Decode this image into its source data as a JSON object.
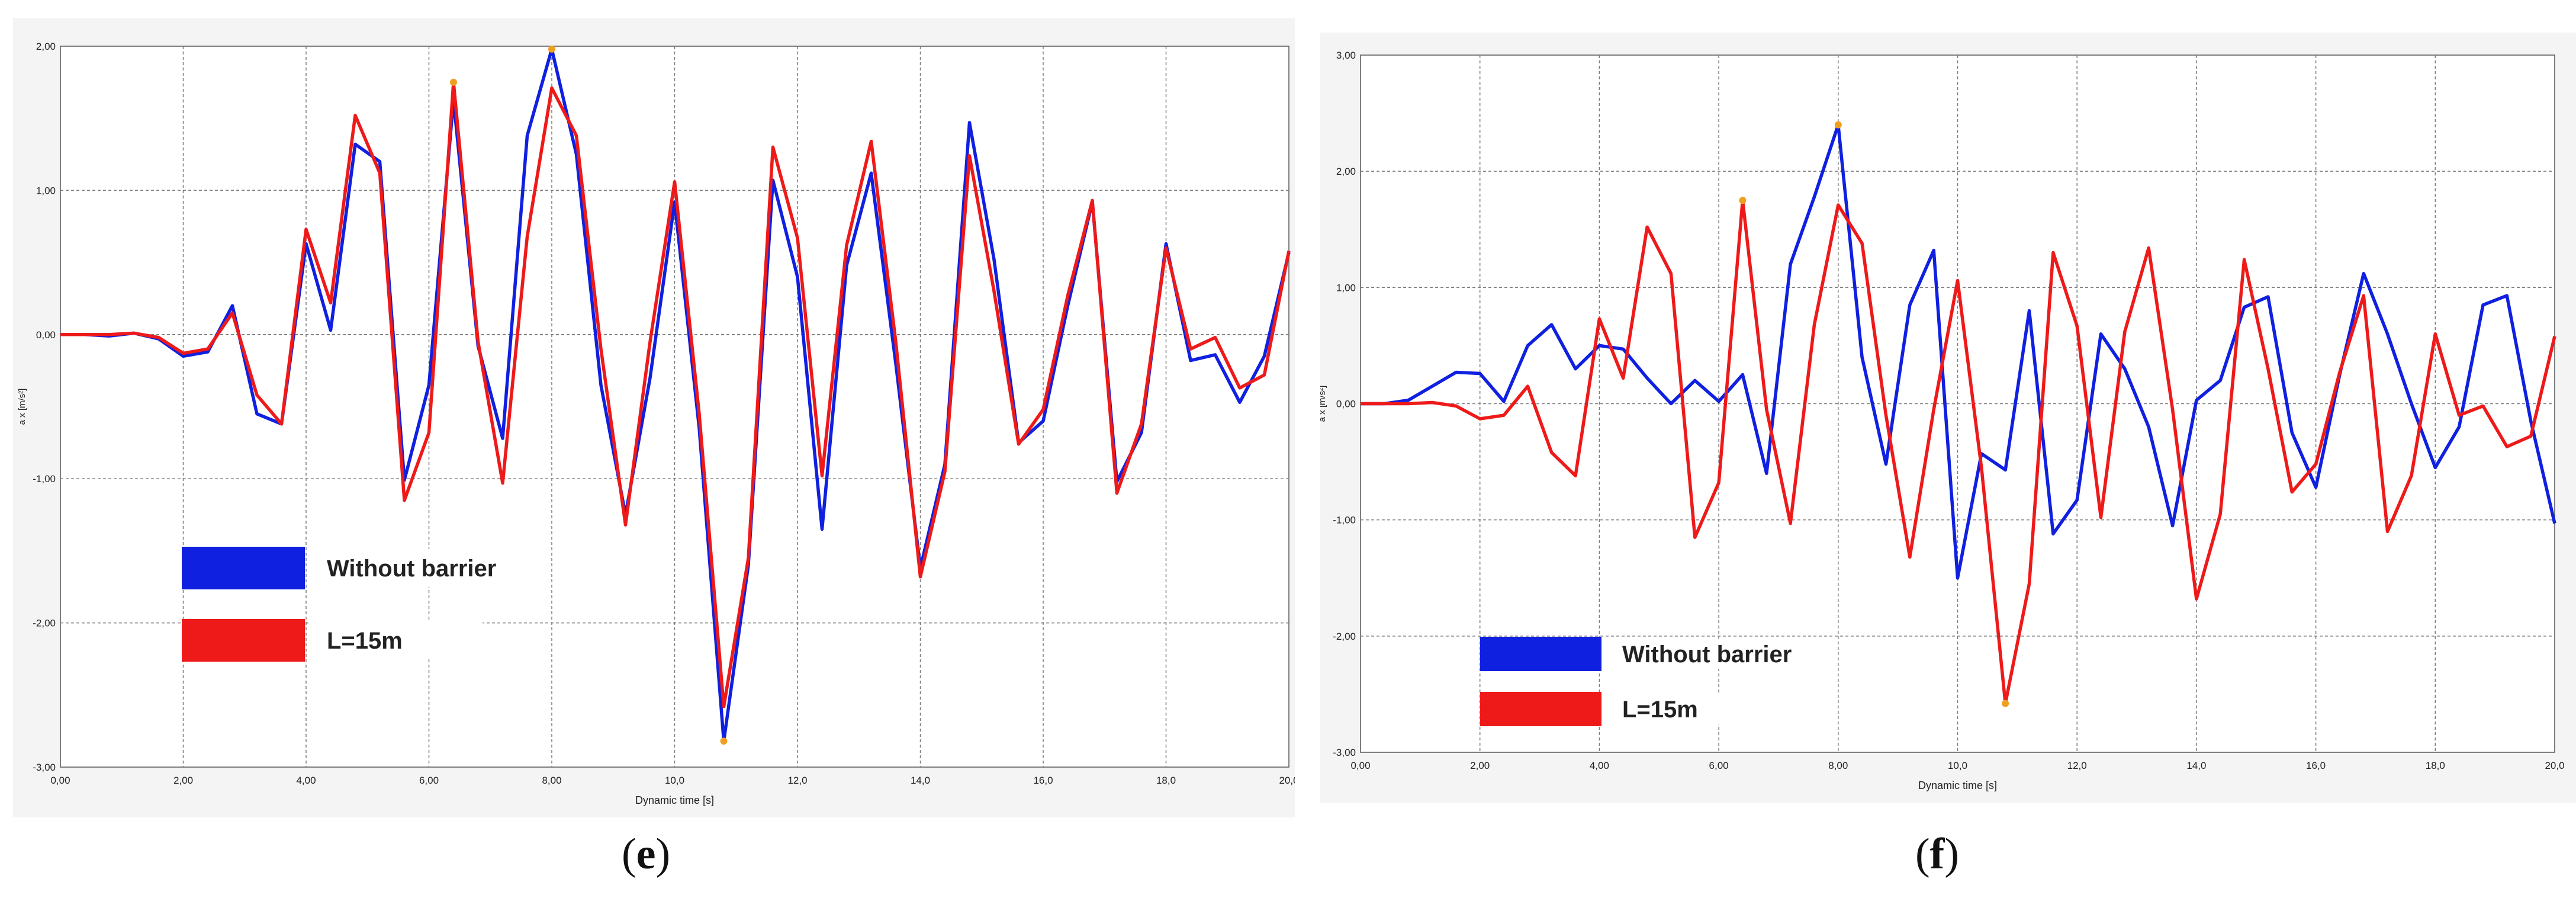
{
  "captions": {
    "e": {
      "open": "(",
      "letter": "e",
      "close": ")"
    },
    "f": {
      "open": "(",
      "letter": "f",
      "close": ")"
    }
  },
  "colors": {
    "blue": "#1020e0",
    "red": "#ee1a1a",
    "peak": "#f0a020",
    "grid": "#7a7a7a"
  },
  "chart_data": [
    {
      "type": "line",
      "panel": "e",
      "xlabel": "Dynamic time [s]",
      "ylabel": "a x [m/s²]",
      "xlim": [
        0,
        20
      ],
      "ylim": [
        -3,
        2
      ],
      "x_ticks": [
        0,
        2,
        4,
        6,
        8,
        10,
        12,
        14,
        16,
        18,
        20
      ],
      "x_tick_labels": [
        "0,00",
        "2,00",
        "4,00",
        "6,00",
        "8,00",
        "10,0",
        "12,0",
        "14,0",
        "16,0",
        "18,0",
        "20,0"
      ],
      "y_ticks": [
        -3,
        -2,
        -1,
        0,
        1,
        2
      ],
      "y_tick_labels": [
        "-3,00",
        "-2,00",
        "-1,00",
        "0,00",
        "1,00",
        "2,00"
      ],
      "grid": true,
      "legend_position": "lower-left",
      "series": [
        {
          "name": "Without barrier",
          "color": "#1020e0",
          "points": [
            [
              0,
              0
            ],
            [
              0.4,
              0
            ],
            [
              0.8,
              -0.01
            ],
            [
              1.2,
              0.01
            ],
            [
              1.6,
              -0.03
            ],
            [
              2.0,
              -0.15
            ],
            [
              2.4,
              -0.12
            ],
            [
              2.8,
              0.2
            ],
            [
              3.2,
              -0.55
            ],
            [
              3.6,
              -0.62
            ],
            [
              4.0,
              0.63
            ],
            [
              4.4,
              0.03
            ],
            [
              4.8,
              1.32
            ],
            [
              5.2,
              1.2
            ],
            [
              5.6,
              -1.01
            ],
            [
              6.0,
              -0.35
            ],
            [
              6.4,
              1.63
            ],
            [
              6.8,
              -0.08
            ],
            [
              7.2,
              -0.72
            ],
            [
              7.6,
              1.38
            ],
            [
              8.0,
              1.98
            ],
            [
              8.4,
              1.25
            ],
            [
              8.8,
              -0.35
            ],
            [
              9.2,
              -1.25
            ],
            [
              9.6,
              -0.3
            ],
            [
              10.0,
              0.92
            ],
            [
              10.4,
              -0.65
            ],
            [
              10.8,
              -2.82
            ],
            [
              11.2,
              -1.6
            ],
            [
              11.6,
              1.07
            ],
            [
              12.0,
              0.4
            ],
            [
              12.4,
              -1.35
            ],
            [
              12.8,
              0.48
            ],
            [
              13.2,
              1.12
            ],
            [
              13.6,
              -0.2
            ],
            [
              14.0,
              -1.62
            ],
            [
              14.4,
              -0.9
            ],
            [
              14.8,
              1.47
            ],
            [
              15.2,
              0.52
            ],
            [
              15.6,
              -0.75
            ],
            [
              16.0,
              -0.6
            ],
            [
              16.4,
              0.2
            ],
            [
              16.8,
              0.92
            ],
            [
              17.2,
              -1.02
            ],
            [
              17.6,
              -0.68
            ],
            [
              18.0,
              0.63
            ],
            [
              18.4,
              -0.18
            ],
            [
              18.8,
              -0.14
            ],
            [
              19.2,
              -0.47
            ],
            [
              19.6,
              -0.15
            ],
            [
              20.0,
              0.57
            ]
          ]
        },
        {
          "name": "L=15m",
          "color": "#ee1a1a",
          "points": [
            [
              0,
              0
            ],
            [
              0.4,
              0
            ],
            [
              0.8,
              0
            ],
            [
              1.2,
              0.01
            ],
            [
              1.6,
              -0.02
            ],
            [
              2.0,
              -0.13
            ],
            [
              2.4,
              -0.1
            ],
            [
              2.8,
              0.15
            ],
            [
              3.2,
              -0.42
            ],
            [
              3.6,
              -0.62
            ],
            [
              4.0,
              0.73
            ],
            [
              4.4,
              0.22
            ],
            [
              4.8,
              1.52
            ],
            [
              5.2,
              1.12
            ],
            [
              5.6,
              -1.15
            ],
            [
              6.0,
              -0.68
            ],
            [
              6.4,
              1.75
            ],
            [
              6.8,
              -0.05
            ],
            [
              7.2,
              -1.03
            ],
            [
              7.6,
              0.68
            ],
            [
              8.0,
              1.71
            ],
            [
              8.4,
              1.38
            ],
            [
              8.8,
              -0.1
            ],
            [
              9.2,
              -1.32
            ],
            [
              9.6,
              -0.05
            ],
            [
              10.0,
              1.06
            ],
            [
              10.4,
              -0.55
            ],
            [
              10.8,
              -2.58
            ],
            [
              11.2,
              -1.55
            ],
            [
              11.6,
              1.3
            ],
            [
              12.0,
              0.67
            ],
            [
              12.4,
              -0.98
            ],
            [
              12.8,
              0.62
            ],
            [
              13.2,
              1.34
            ],
            [
              13.6,
              -0.05
            ],
            [
              14.0,
              -1.68
            ],
            [
              14.4,
              -0.95
            ],
            [
              14.8,
              1.24
            ],
            [
              15.2,
              0.3
            ],
            [
              15.6,
              -0.76
            ],
            [
              16.0,
              -0.52
            ],
            [
              16.4,
              0.27
            ],
            [
              16.8,
              0.93
            ],
            [
              17.2,
              -1.1
            ],
            [
              17.6,
              -0.62
            ],
            [
              18.0,
              0.6
            ],
            [
              18.4,
              -0.1
            ],
            [
              18.8,
              -0.02
            ],
            [
              19.2,
              -0.37
            ],
            [
              19.6,
              -0.28
            ],
            [
              20.0,
              0.58
            ]
          ]
        }
      ],
      "peak_markers": [
        [
          6.4,
          1.75
        ],
        [
          8.0,
          1.98
        ],
        [
          10.8,
          -2.82
        ]
      ]
    },
    {
      "type": "line",
      "panel": "f",
      "xlabel": "Dynamic time [s]",
      "ylabel": "a x [m/s²]",
      "xlim": [
        0,
        20
      ],
      "ylim": [
        -3,
        3
      ],
      "x_ticks": [
        0,
        2,
        4,
        6,
        8,
        10,
        12,
        14,
        16,
        18,
        20
      ],
      "x_tick_labels": [
        "0,00",
        "2,00",
        "4,00",
        "6,00",
        "8,00",
        "10,0",
        "12,0",
        "14,0",
        "16,0",
        "18,0",
        "20,0"
      ],
      "y_ticks": [
        -3,
        -2,
        -1,
        0,
        1,
        2,
        3
      ],
      "y_tick_labels": [
        "-3,00",
        "-2,00",
        "-1,00",
        "0,00",
        "1,00",
        "2,00",
        "3,00"
      ],
      "grid": true,
      "legend_position": "lower-left",
      "series": [
        {
          "name": "Without barrier",
          "color": "#1020e0",
          "points": [
            [
              0,
              0
            ],
            [
              0.4,
              0
            ],
            [
              0.8,
              0.03
            ],
            [
              1.2,
              0.15
            ],
            [
              1.6,
              0.27
            ],
            [
              2.0,
              0.26
            ],
            [
              2.4,
              0.02
            ],
            [
              2.8,
              0.5
            ],
            [
              3.2,
              0.68
            ],
            [
              3.6,
              0.3
            ],
            [
              4.0,
              0.5
            ],
            [
              4.4,
              0.47
            ],
            [
              4.8,
              0.22
            ],
            [
              5.2,
              0
            ],
            [
              5.6,
              0.2
            ],
            [
              6.0,
              0.02
            ],
            [
              6.4,
              0.25
            ],
            [
              6.8,
              -0.6
            ],
            [
              7.2,
              1.2
            ],
            [
              7.6,
              1.78
            ],
            [
              8.0,
              2.4
            ],
            [
              8.4,
              0.4
            ],
            [
              8.8,
              -0.52
            ],
            [
              9.2,
              0.85
            ],
            [
              9.6,
              1.32
            ],
            [
              10.0,
              -1.5
            ],
            [
              10.4,
              -0.43
            ],
            [
              10.8,
              -0.57
            ],
            [
              11.2,
              0.8
            ],
            [
              11.6,
              -1.12
            ],
            [
              12.0,
              -0.83
            ],
            [
              12.4,
              0.6
            ],
            [
              12.8,
              0.3
            ],
            [
              13.2,
              -0.2
            ],
            [
              13.6,
              -1.05
            ],
            [
              14.0,
              0.03
            ],
            [
              14.4,
              0.2
            ],
            [
              14.8,
              0.83
            ],
            [
              15.2,
              0.92
            ],
            [
              15.6,
              -0.25
            ],
            [
              16.0,
              -0.72
            ],
            [
              16.4,
              0.25
            ],
            [
              16.8,
              1.12
            ],
            [
              17.2,
              0.6
            ],
            [
              17.6,
              0
            ],
            [
              18.0,
              -0.55
            ],
            [
              18.4,
              -0.2
            ],
            [
              18.8,
              0.85
            ],
            [
              19.2,
              0.93
            ],
            [
              19.6,
              -0.15
            ],
            [
              20.0,
              -1.03
            ]
          ]
        },
        {
          "name": "L=15m",
          "color": "#ee1a1a",
          "points": [
            [
              0,
              0
            ],
            [
              0.4,
              0
            ],
            [
              0.8,
              0
            ],
            [
              1.2,
              0.01
            ],
            [
              1.6,
              -0.02
            ],
            [
              2.0,
              -0.13
            ],
            [
              2.4,
              -0.1
            ],
            [
              2.8,
              0.15
            ],
            [
              3.2,
              -0.42
            ],
            [
              3.6,
              -0.62
            ],
            [
              4.0,
              0.73
            ],
            [
              4.4,
              0.22
            ],
            [
              4.8,
              1.52
            ],
            [
              5.2,
              1.12
            ],
            [
              5.6,
              -1.15
            ],
            [
              6.0,
              -0.68
            ],
            [
              6.4,
              1.75
            ],
            [
              6.8,
              -0.05
            ],
            [
              7.2,
              -1.03
            ],
            [
              7.6,
              0.68
            ],
            [
              8.0,
              1.71
            ],
            [
              8.4,
              1.38
            ],
            [
              8.8,
              -0.1
            ],
            [
              9.2,
              -1.32
            ],
            [
              9.6,
              -0.05
            ],
            [
              10.0,
              1.06
            ],
            [
              10.4,
              -0.55
            ],
            [
              10.8,
              -2.58
            ],
            [
              11.2,
              -1.55
            ],
            [
              11.6,
              1.3
            ],
            [
              12.0,
              0.67
            ],
            [
              12.4,
              -0.98
            ],
            [
              12.8,
              0.62
            ],
            [
              13.2,
              1.34
            ],
            [
              13.6,
              -0.05
            ],
            [
              14.0,
              -1.68
            ],
            [
              14.4,
              -0.95
            ],
            [
              14.8,
              1.24
            ],
            [
              15.2,
              0.3
            ],
            [
              15.6,
              -0.76
            ],
            [
              16.0,
              -0.52
            ],
            [
              16.4,
              0.27
            ],
            [
              16.8,
              0.93
            ],
            [
              17.2,
              -1.1
            ],
            [
              17.6,
              -0.62
            ],
            [
              18.0,
              0.6
            ],
            [
              18.4,
              -0.1
            ],
            [
              18.8,
              -0.02
            ],
            [
              19.2,
              -0.37
            ],
            [
              19.6,
              -0.28
            ],
            [
              20.0,
              0.58
            ]
          ]
        }
      ],
      "peak_markers": [
        [
          6.4,
          1.75
        ],
        [
          8.0,
          2.4
        ],
        [
          10.8,
          -2.58
        ]
      ]
    }
  ]
}
